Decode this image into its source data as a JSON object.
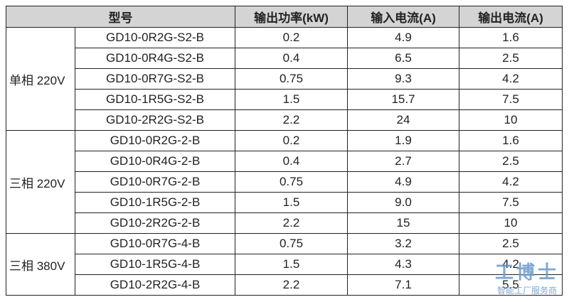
{
  "table": {
    "header": [
      "型号",
      "输出功率(kW)",
      "输入电流(A)",
      "输出电流(A)"
    ],
    "groups": [
      {
        "label": "单相 220V",
        "rows": [
          [
            "GD10-0R2G-S2-B",
            "0.2",
            "4.9",
            "1.6"
          ],
          [
            "GD10-0R4G-S2-B",
            "0.4",
            "6.5",
            "2.5"
          ],
          [
            "GD10-0R7G-S2-B",
            "0.75",
            "9.3",
            "4.2"
          ],
          [
            "GD10-1R5G-S2-B",
            "1.5",
            "15.7",
            "7.5"
          ],
          [
            "GD10-2R2G-S2-B",
            "2.2",
            "24",
            "10"
          ]
        ]
      },
      {
        "label": "三相 220V",
        "rows": [
          [
            "GD10-0R2G-2-B",
            "0.2",
            "1.9",
            "1.6"
          ],
          [
            "GD10-0R4G-2-B",
            "0.4",
            "2.7",
            "2.5"
          ],
          [
            "GD10-0R7G-2-B",
            "0.75",
            "4.9",
            "4.2"
          ],
          [
            "GD10-1R5G-2-B",
            "1.5",
            "9.0",
            "7.5"
          ],
          [
            "GD10-2R2G-2-B",
            "2.2",
            "15",
            "10"
          ]
        ]
      },
      {
        "label": "三相 380V",
        "rows": [
          [
            "GD10-0R7G-4-B",
            "0.75",
            "3.2",
            "2.5"
          ],
          [
            "GD10-1R5G-4-B",
            "1.5",
            "4.3",
            "4.2"
          ],
          [
            "GD10-2R2G-4-B",
            "2.2",
            "7.1",
            "5.5"
          ]
        ]
      }
    ]
  },
  "watermark": {
    "name": "工博士",
    "slogan": "智能工厂服务商"
  }
}
